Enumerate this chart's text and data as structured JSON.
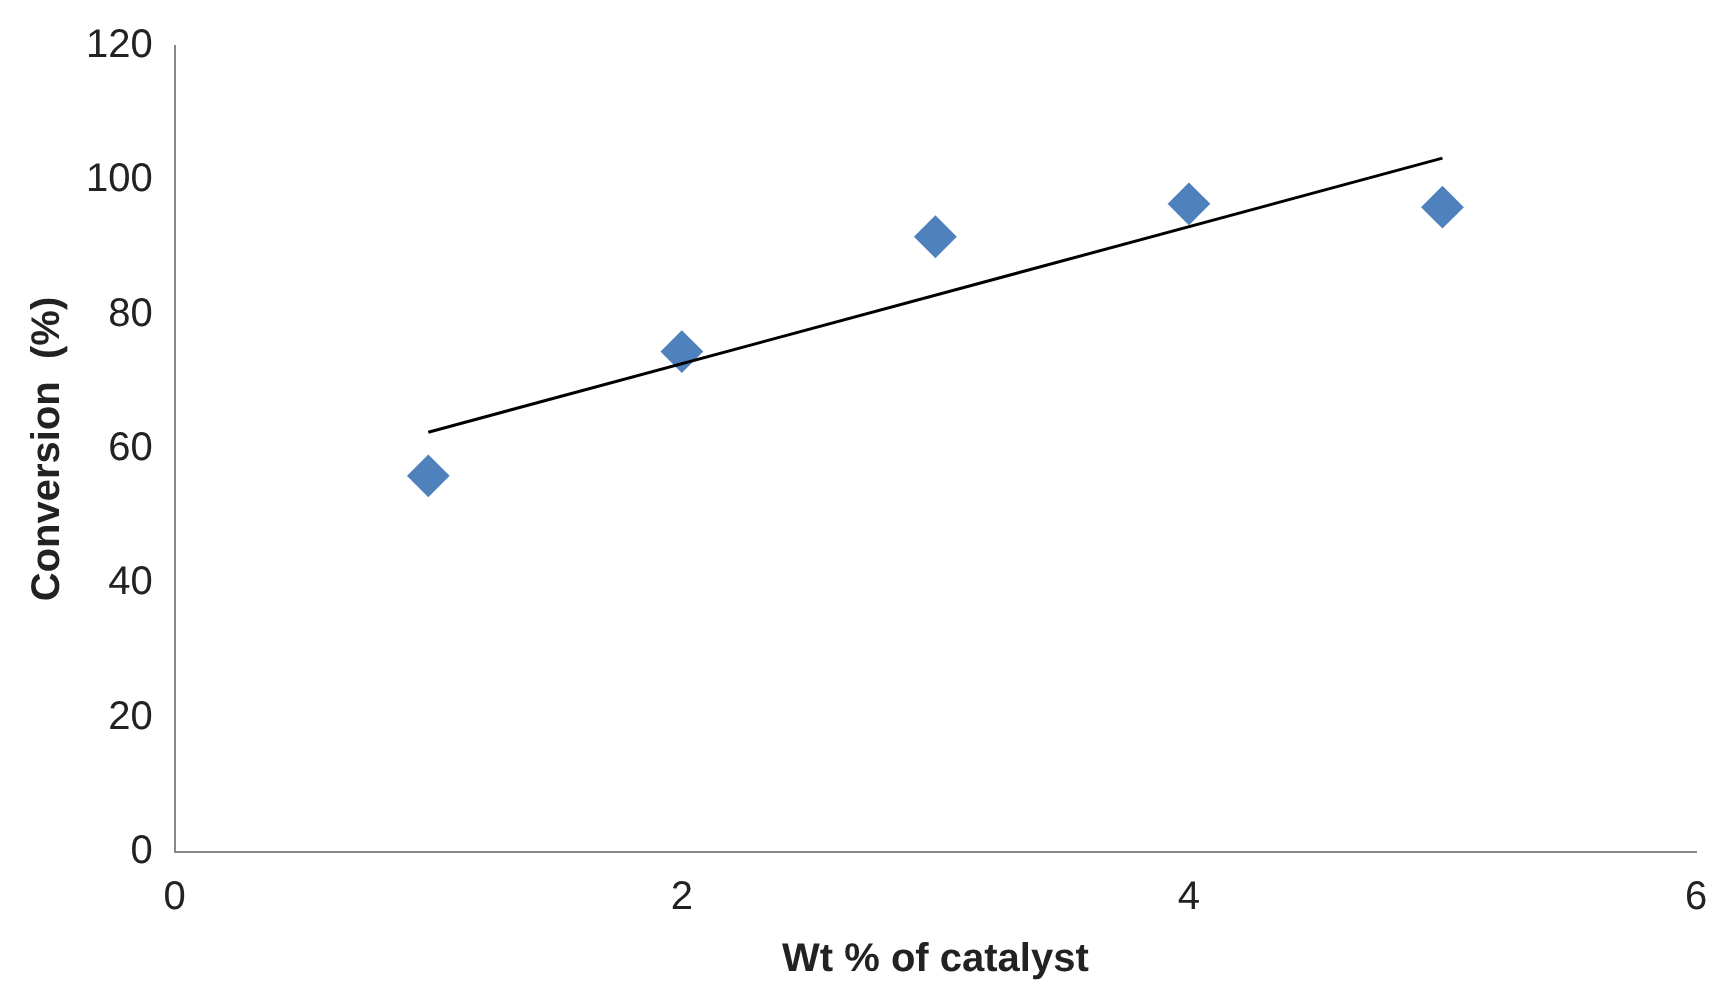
{
  "chart_data": {
    "type": "scatter",
    "xlabel": "Wt % of catalyst",
    "ylabel": "Conversion  (%)",
    "x": [
      1,
      2,
      3,
      4,
      5
    ],
    "xlim": [
      0,
      6
    ],
    "xticks": [
      0,
      2,
      4,
      6
    ],
    "ylim": [
      0,
      120
    ],
    "yticks": [
      0,
      20,
      40,
      60,
      80,
      100,
      120
    ],
    "grid": false,
    "legend": false,
    "series": [
      {
        "type": "scatter",
        "color": "#4f81bd",
        "marker": "diamond",
        "values": [
          56,
          74.5,
          91.6,
          96.5,
          96
        ]
      },
      {
        "type": "line",
        "color": "#000000",
        "marker": "none",
        "line_style": "solid",
        "x": [
          1,
          5
        ],
        "values": [
          62.5,
          103.3
        ]
      }
    ]
  }
}
